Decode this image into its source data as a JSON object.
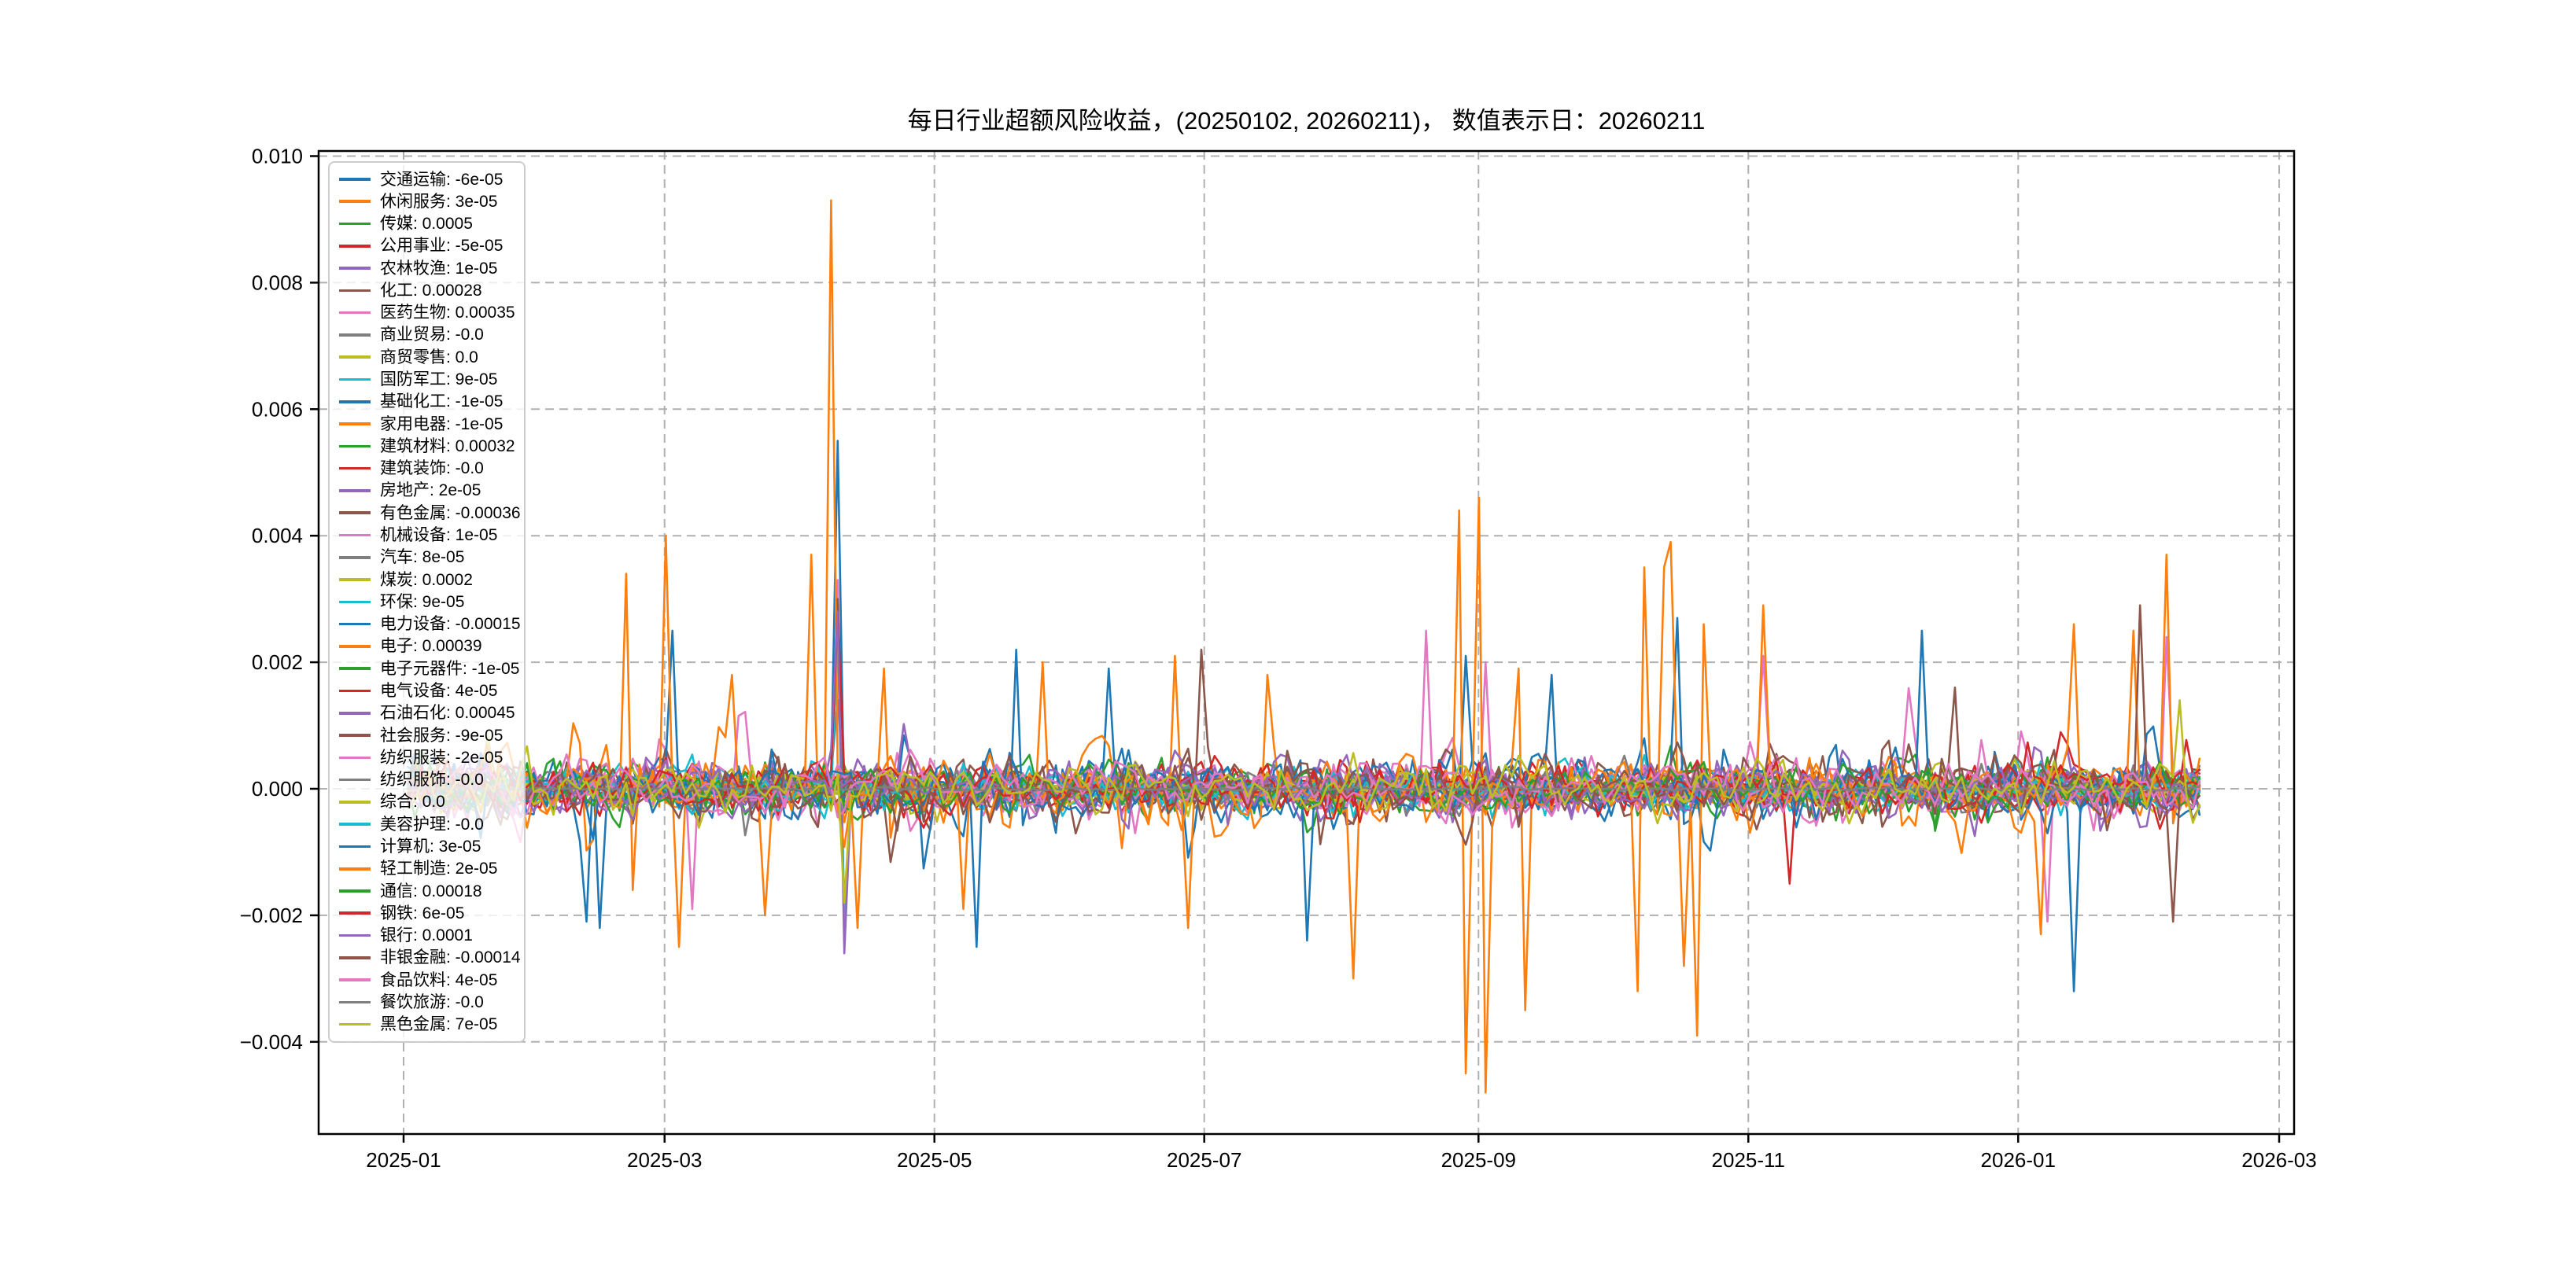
{
  "title": "每日行业超额风险收益，(20250102, 20260211)，  数值表示日：20260211",
  "chart_data": {
    "type": "line",
    "title": "每日行业超额风险收益，(20250102, 20260211)，  数值表示日：20260211",
    "x_range": {
      "start": "2025-01-02",
      "end": "2026-02-11",
      "points": 272
    },
    "ylim": [
      -0.0055,
      0.0101
    ],
    "grid": true,
    "legend_position": "upper-left",
    "y_ticks": [
      {
        "v": 0.01,
        "label": "0.010"
      },
      {
        "v": 0.008,
        "label": "0.008"
      },
      {
        "v": 0.006,
        "label": "0.006"
      },
      {
        "v": 0.004,
        "label": "0.004"
      },
      {
        "v": 0.002,
        "label": "0.002"
      },
      {
        "v": 0.0,
        "label": "0.000"
      },
      {
        "v": -0.002,
        "label": "−0.002"
      },
      {
        "v": -0.004,
        "label": "−0.004"
      }
    ],
    "x_ticks": [
      {
        "d": 0,
        "label": "2025-01"
      },
      {
        "d": 59,
        "label": "2025-03"
      },
      {
        "d": 120,
        "label": "2025-05"
      },
      {
        "d": 181,
        "label": "2025-07"
      },
      {
        "d": 243,
        "label": "2025-09"
      },
      {
        "d": 304,
        "label": "2025-11"
      },
      {
        "d": 365,
        "label": "2026-01"
      },
      {
        "d": 424,
        "label": "2026-03"
      }
    ],
    "series": [
      {
        "label": "交通运输",
        "value": "-6e-05",
        "color": "#1f77b4",
        "vol": 0.0003
      },
      {
        "label": "休闲服务",
        "value": "3e-05",
        "color": "#ff7f0e",
        "vol": 0.00025
      },
      {
        "label": "传媒",
        "value": "0.0005",
        "color": "#2ca02c",
        "vol": 0.00035
      },
      {
        "label": "公用事业",
        "value": "-5e-05",
        "color": "#d62728",
        "vol": 0.00028
      },
      {
        "label": "农林牧渔",
        "value": "1e-05",
        "color": "#9467bd",
        "vol": 0.0003
      },
      {
        "label": "化工",
        "value": "0.00028",
        "color": "#8c564b",
        "vol": 0.00035
      },
      {
        "label": "医药生物",
        "value": "0.00035",
        "color": "#e377c2",
        "vol": 0.00045
      },
      {
        "label": "商业贸易",
        "value": "-0.0",
        "color": "#7f7f7f",
        "vol": 3e-05
      },
      {
        "label": "商贸零售",
        "value": "0.0",
        "color": "#bcbd22",
        "vol": 0.0001
      },
      {
        "label": "国防军工",
        "value": "9e-05",
        "color": "#17becf",
        "vol": 0.0003
      },
      {
        "label": "基础化工",
        "value": "-1e-05",
        "color": "#1f77b4",
        "vol": 0.0003
      },
      {
        "label": "家用电器",
        "value": "-1e-05",
        "color": "#ff7f0e",
        "vol": 0.0003
      },
      {
        "label": "建筑材料",
        "value": "0.00032",
        "color": "#2ca02c",
        "vol": 0.0003
      },
      {
        "label": "建筑装饰",
        "value": "-0.0",
        "color": "#d62728",
        "vol": 0.00028
      },
      {
        "label": "房地产",
        "value": "2e-05",
        "color": "#9467bd",
        "vol": 0.00032
      },
      {
        "label": "有色金属",
        "value": "-0.00036",
        "color": "#8c564b",
        "vol": 0.00042
      },
      {
        "label": "机械设备",
        "value": "1e-05",
        "color": "#e377c2",
        "vol": 0.0003
      },
      {
        "label": "汽车",
        "value": "8e-05",
        "color": "#7f7f7f",
        "vol": 0.00028
      },
      {
        "label": "煤炭",
        "value": "0.0002",
        "color": "#bcbd22",
        "vol": 0.0003
      },
      {
        "label": "环保",
        "value": "9e-05",
        "color": "#17becf",
        "vol": 0.00028
      },
      {
        "label": "电力设备",
        "value": "-0.00015",
        "color": "#1f77b4",
        "vol": 0.0005
      },
      {
        "label": "电子",
        "value": "0.00039",
        "color": "#ff7f0e",
        "vol": 0.00055
      },
      {
        "label": "电子元器件",
        "value": "-1e-05",
        "color": "#2ca02c",
        "vol": 0.00022
      },
      {
        "label": "电气设备",
        "value": "4e-05",
        "color": "#d62728",
        "vol": 0.00032
      },
      {
        "label": "石油石化",
        "value": "0.00045",
        "color": "#9467bd",
        "vol": 0.0004
      },
      {
        "label": "社会服务",
        "value": "-9e-05",
        "color": "#8c564b",
        "vol": 0.0003
      },
      {
        "label": "纺织服装",
        "value": "-2e-05",
        "color": "#e377c2",
        "vol": 0.0003
      },
      {
        "label": "纺织服饰",
        "value": "-0.0",
        "color": "#7f7f7f",
        "vol": 0.00012
      },
      {
        "label": "综合",
        "value": "0.0",
        "color": "#bcbd22",
        "vol": 0.00022
      },
      {
        "label": "美容护理",
        "value": "-0.0",
        "color": "#17becf",
        "vol": 0.00015
      },
      {
        "label": "计算机",
        "value": "3e-05",
        "color": "#1f77b4",
        "vol": 0.00035
      },
      {
        "label": "轻工制造",
        "value": "2e-05",
        "color": "#ff7f0e",
        "vol": 0.00028
      },
      {
        "label": "通信",
        "value": "0.00018",
        "color": "#2ca02c",
        "vol": 0.0003
      },
      {
        "label": "钢铁",
        "value": "6e-05",
        "color": "#d62728",
        "vol": 0.00028
      },
      {
        "label": "银行",
        "value": "0.0001",
        "color": "#9467bd",
        "vol": 0.00025
      },
      {
        "label": "非银金融",
        "value": "-0.00014",
        "color": "#8c564b",
        "vol": 0.00038
      },
      {
        "label": "食品饮料",
        "value": "4e-05",
        "color": "#e377c2",
        "vol": 0.0003
      },
      {
        "label": "餐饮旅游",
        "value": "-0.0",
        "color": "#7f7f7f",
        "vol": 2e-05
      },
      {
        "label": "黑色金属",
        "value": "7e-05",
        "color": "#bcbd22",
        "vol": 0.00035
      }
    ],
    "events_note": "notable one-day spikes read off the plot; s=series index, d=days since 2025-01-01, v=excess return value",
    "events": [
      {
        "s": 20,
        "d": 42,
        "v": -0.0021
      },
      {
        "s": 20,
        "d": 44,
        "v": -0.0022
      },
      {
        "s": 21,
        "d": 50,
        "v": 0.0034
      },
      {
        "s": 21,
        "d": 52,
        "v": -0.0016
      },
      {
        "s": 21,
        "d": 59,
        "v": 0.004
      },
      {
        "s": 20,
        "d": 61,
        "v": 0.0025
      },
      {
        "s": 21,
        "d": 63,
        "v": -0.0025
      },
      {
        "s": 6,
        "d": 65,
        "v": -0.0019
      },
      {
        "s": 21,
        "d": 74,
        "v": 0.0018
      },
      {
        "s": 21,
        "d": 82,
        "v": -0.002
      },
      {
        "s": 21,
        "d": 92,
        "v": 0.0037
      },
      {
        "s": 21,
        "d": 97,
        "v": 0.0093
      },
      {
        "s": 20,
        "d": 98,
        "v": 0.0055
      },
      {
        "s": 6,
        "d": 98,
        "v": 0.0033
      },
      {
        "s": 2,
        "d": 98,
        "v": 0.0032
      },
      {
        "s": 23,
        "d": 98,
        "v": 0.0028
      },
      {
        "s": 24,
        "d": 98,
        "v": 0.0028
      },
      {
        "s": 15,
        "d": 98,
        "v": 0.003
      },
      {
        "s": 19,
        "d": 98,
        "v": 0.0024
      },
      {
        "s": 17,
        "d": 98,
        "v": 0.0014
      },
      {
        "s": 24,
        "d": 99,
        "v": -0.0026
      },
      {
        "s": 2,
        "d": 99,
        "v": -0.0022
      },
      {
        "s": 19,
        "d": 99,
        "v": -0.002
      },
      {
        "s": 38,
        "d": 99,
        "v": -0.0018
      },
      {
        "s": 6,
        "d": 100,
        "v": -0.0021
      },
      {
        "s": 21,
        "d": 103,
        "v": -0.0022
      },
      {
        "s": 21,
        "d": 109,
        "v": 0.0019
      },
      {
        "s": 21,
        "d": 127,
        "v": -0.0019
      },
      {
        "s": 20,
        "d": 130,
        "v": -0.0025
      },
      {
        "s": 20,
        "d": 139,
        "v": 0.0022
      },
      {
        "s": 21,
        "d": 144,
        "v": 0.002
      },
      {
        "s": 20,
        "d": 160,
        "v": 0.0019
      },
      {
        "s": 21,
        "d": 175,
        "v": 0.0021
      },
      {
        "s": 21,
        "d": 177,
        "v": -0.0022
      },
      {
        "s": 15,
        "d": 181,
        "v": 0.0022
      },
      {
        "s": 21,
        "d": 195,
        "v": 0.0018
      },
      {
        "s": 20,
        "d": 204,
        "v": -0.0024
      },
      {
        "s": 21,
        "d": 214,
        "v": -0.003
      },
      {
        "s": 6,
        "d": 231,
        "v": 0.0025
      },
      {
        "s": 21,
        "d": 239,
        "v": 0.0044
      },
      {
        "s": 21,
        "d": 240,
        "v": -0.0045
      },
      {
        "s": 20,
        "d": 240,
        "v": 0.0021
      },
      {
        "s": 21,
        "d": 243,
        "v": 0.0046
      },
      {
        "s": 21,
        "d": 244,
        "v": -0.0048
      },
      {
        "s": 6,
        "d": 245,
        "v": 0.002
      },
      {
        "s": 21,
        "d": 252,
        "v": 0.0019
      },
      {
        "s": 21,
        "d": 254,
        "v": -0.0035
      },
      {
        "s": 20,
        "d": 260,
        "v": 0.0018
      },
      {
        "s": 21,
        "d": 279,
        "v": -0.0032
      },
      {
        "s": 21,
        "d": 281,
        "v": 0.0035
      },
      {
        "s": 21,
        "d": 285,
        "v": 0.0035
      },
      {
        "s": 21,
        "d": 287,
        "v": 0.0039
      },
      {
        "s": 20,
        "d": 288,
        "v": 0.0027
      },
      {
        "s": 21,
        "d": 289,
        "v": -0.0028
      },
      {
        "s": 21,
        "d": 292,
        "v": -0.0039
      },
      {
        "s": 21,
        "d": 294,
        "v": 0.0026
      },
      {
        "s": 6,
        "d": 307,
        "v": 0.0021
      },
      {
        "s": 21,
        "d": 308,
        "v": 0.0029
      },
      {
        "s": 23,
        "d": 313,
        "v": -0.0015
      },
      {
        "s": 20,
        "d": 343,
        "v": 0.0025
      },
      {
        "s": 15,
        "d": 351,
        "v": 0.0016
      },
      {
        "s": 21,
        "d": 370,
        "v": -0.0023
      },
      {
        "s": 6,
        "d": 372,
        "v": -0.0021
      },
      {
        "s": 20,
        "d": 377,
        "v": -0.0032
      },
      {
        "s": 21,
        "d": 378,
        "v": 0.0026
      },
      {
        "s": 21,
        "d": 391,
        "v": 0.0025
      },
      {
        "s": 35,
        "d": 393,
        "v": 0.0029
      },
      {
        "s": 21,
        "d": 398,
        "v": 0.0037
      },
      {
        "s": 6,
        "d": 399,
        "v": 0.0024
      },
      {
        "s": 35,
        "d": 400,
        "v": -0.0021
      },
      {
        "s": 38,
        "d": 401,
        "v": 0.0014
      }
    ],
    "colors": {
      "grid": "#b0b0b0",
      "spine": "#000000",
      "text": "#000000"
    }
  }
}
